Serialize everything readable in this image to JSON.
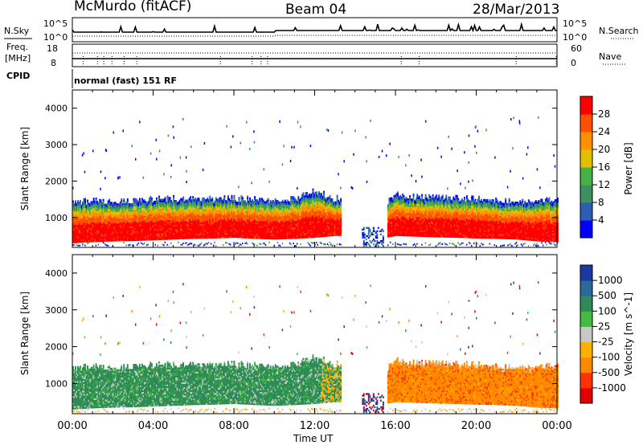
{
  "header": {
    "station": "McMurdo (fitACF)",
    "beam": "Beam 04",
    "date": "28/Mar/2013",
    "cpid_label": "CPID",
    "cpid_value": "normal (fast) 151 RF"
  },
  "top_panel": {
    "left_label": "N.Sky",
    "right_label": "N.Search",
    "ticks_left": [
      "10^5",
      "10^0"
    ],
    "ticks_right": [
      "10^5",
      "10^0"
    ]
  },
  "freq_panel": {
    "left_label_1": "Freq.",
    "left_label_2": "[MHz]",
    "right_label": "Nave",
    "ticks_left": [
      "18",
      "8"
    ],
    "ticks_right": [
      "60",
      "0"
    ]
  },
  "colors": {
    "power": [
      "#0000ff",
      "#2b5fb5",
      "#3f9060",
      "#44b347",
      "#e0c000",
      "#ff9000",
      "#ff5000",
      "#ff0000"
    ],
    "velocity": [
      "#e00000",
      "#ff3300",
      "#ff8800",
      "#ffb000",
      "#c8c8c8",
      "#44bb44",
      "#2e8b57",
      "#2a6a9a",
      "#1a3aa0"
    ]
  },
  "chart_data": [
    {
      "type": "heatmap",
      "name": "power",
      "ylabel": "Slant Range [km]",
      "xlabel": "",
      "ylim": [
        180,
        4500
      ],
      "y_ticks": [
        "1000",
        "2000",
        "3000",
        "4000"
      ],
      "x_ticks": [
        "00:00",
        "04:00",
        "08:00",
        "12:00",
        "16:00",
        "20:00",
        "00:00"
      ],
      "colorbar_label": "Power [dB]",
      "colorbar_ticks": [
        "28",
        "24",
        "20",
        "16",
        "12",
        "8",
        "4"
      ],
      "colorbar_range": [
        0,
        32
      ],
      "echo_band_profile": {
        "time_hours": [
          0,
          1,
          2,
          3,
          4,
          5,
          6,
          7,
          8,
          9,
          10,
          11,
          12,
          13,
          15.5,
          16,
          17,
          18,
          19,
          20,
          21,
          22,
          23,
          24
        ],
        "top_km": [
          1400,
          1450,
          1420,
          1450,
          1480,
          1500,
          1500,
          1480,
          1520,
          1500,
          1450,
          1500,
          1700,
          1500,
          1400,
          1600,
          1550,
          1550,
          1500,
          1500,
          1450,
          1400,
          1450,
          1500
        ],
        "bottom_km": [
          300,
          330,
          350,
          360,
          380,
          400,
          420,
          430,
          450,
          420,
          400,
          420,
          450,
          500,
          450,
          500,
          480,
          460,
          450,
          430,
          420,
          400,
          350,
          330
        ]
      }
    },
    {
      "type": "heatmap",
      "name": "velocity",
      "ylabel": "Slant Range [km]",
      "xlabel": "Time UT",
      "ylim": [
        180,
        4500
      ],
      "y_ticks": [
        "1000",
        "2000",
        "3000",
        "4000"
      ],
      "x_ticks": [
        "00:00",
        "04:00",
        "08:00",
        "12:00",
        "16:00",
        "20:00",
        "00:00"
      ],
      "colorbar_label": "Velocity [m s^-1]",
      "colorbar_ticks": [
        "1000",
        "500",
        "100",
        "25",
        "-25",
        "-100",
        "-500",
        "-1000"
      ]
    }
  ]
}
